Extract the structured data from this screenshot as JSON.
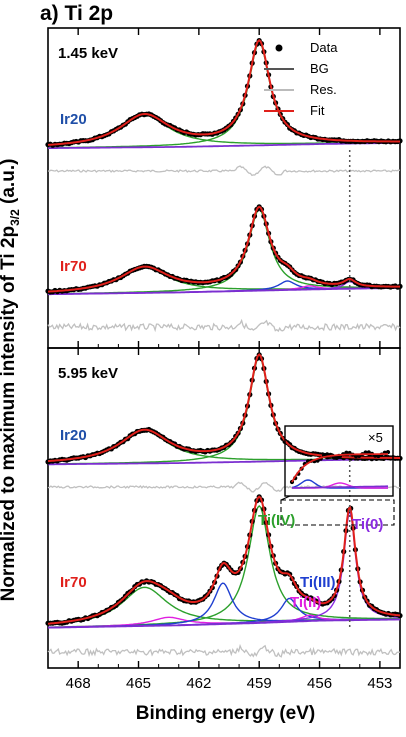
{
  "title": "a) Ti 2p",
  "chart_data": {
    "type": "line",
    "x_reversed": true,
    "xlim": [
      469.5,
      452
    ],
    "xlabel": "Binding energy (eV)",
    "ylabel_parts": [
      "Normalized to maximum intensity of Ti 2p",
      "3/2",
      " (a.u.)"
    ],
    "x_ticks": [
      {
        "value": 468,
        "label": "468"
      },
      {
        "value": 465,
        "label": "465"
      },
      {
        "value": 462,
        "label": "462"
      },
      {
        "value": 459,
        "label": "459"
      },
      {
        "value": 456,
        "label": "456"
      },
      {
        "value": 453,
        "label": "453"
      }
    ],
    "legend": [
      {
        "label": "Data",
        "kind": "marker",
        "color": "#000000"
      },
      {
        "label": "BG",
        "kind": "line",
        "color": "#555555"
      },
      {
        "label": "Res.",
        "kind": "line",
        "color": "#bbbbbb"
      },
      {
        "label": "Fit",
        "kind": "line",
        "color": "#e0201b"
      }
    ],
    "colors": {
      "data": "#000000",
      "fit": "#e0201b",
      "bg": "#7b2fd0",
      "res": "#c0c0c0",
      "ti4": "#2ca02c",
      "ti3": "#1f3fd0",
      "ti2": "#e020e0",
      "ti0": "#8a2be2",
      "ir20": "#1f4fa8",
      "ir70": "#e0201b"
    },
    "panels": [
      {
        "energy": "1.45 keV",
        "traces": [
          {
            "sample": "Ir20",
            "residual": "flat",
            "bg": [
              [
                469.5,
                0.018
              ],
              [
                463,
                0.03
              ],
              [
                459,
                0.045
              ],
              [
                456,
                0.058
              ],
              [
                452,
                0.07
              ]
            ],
            "components": [
              {
                "state": "Ti(IV)",
                "center": 464.7,
                "height": 0.31,
                "width": 1.5
              },
              {
                "state": "Ti(IV)",
                "center": 459.0,
                "height": 1.0,
                "width": 0.65
              }
            ]
          },
          {
            "sample": "Ir70",
            "residual": "noisy",
            "bg": [
              [
                469.5,
                0.02
              ],
              [
                463,
                0.04
              ],
              [
                459,
                0.06
              ],
              [
                456,
                0.075
              ],
              [
                452,
                0.09
              ]
            ],
            "components": [
              {
                "state": "Ti(IV)",
                "center": 464.7,
                "height": 0.28,
                "width": 1.5
              },
              {
                "state": "Ti(IV)",
                "center": 459.0,
                "height": 0.9,
                "width": 0.65
              },
              {
                "state": "Ti(III)",
                "center": 457.6,
                "height": 0.1,
                "width": 0.5
              },
              {
                "state": "Ti(II)",
                "center": 456.5,
                "height": 0.04,
                "width": 0.5
              },
              {
                "state": "Ti(0)",
                "center": 454.5,
                "height": 0.08,
                "width": 0.35
              }
            ]
          }
        ]
      },
      {
        "energy": "5.95 keV",
        "traces": [
          {
            "sample": "Ir20",
            "residual": "flat",
            "bg": [
              [
                469.5,
                0.016
              ],
              [
                463,
                0.028
              ],
              [
                459,
                0.042
              ],
              [
                456,
                0.055
              ],
              [
                452,
                0.065
              ]
            ],
            "components": [
              {
                "state": "Ti(IV)",
                "center": 464.7,
                "height": 0.31,
                "width": 1.5
              },
              {
                "state": "Ti(IV)",
                "center": 459.0,
                "height": 1.0,
                "width": 0.6
              }
            ]
          },
          {
            "sample": "Ir70",
            "residual": "noisy",
            "bg": [
              [
                469.5,
                0.02
              ],
              [
                463,
                0.04
              ],
              [
                459,
                0.06
              ],
              [
                456,
                0.08
              ],
              [
                452,
                0.09
              ]
            ],
            "components": [
              {
                "state": "Ti(IV)",
                "center": 464.7,
                "height": 0.33,
                "width": 1.4
              },
              {
                "state": "Ti(IV)",
                "center": 459.0,
                "height": 1.0,
                "width": 0.65
              },
              {
                "state": "Ti(II)",
                "center": 463.5,
                "height": 0.07,
                "width": 1.0
              },
              {
                "state": "Ti(III)",
                "center": 460.8,
                "height": 0.35,
                "width": 0.55
              },
              {
                "state": "Ti(III)",
                "center": 457.5,
                "height": 0.2,
                "width": 0.5
              },
              {
                "state": "Ti(II)",
                "center": 456.5,
                "height": 0.05,
                "width": 0.5
              },
              {
                "state": "Ti(0)",
                "center": 454.5,
                "height": 0.93,
                "width": 0.35
              }
            ]
          }
        ]
      }
    ],
    "component_labels": [
      "Ti(IV)",
      "Ti(III)",
      "Ti(II)",
      "Ti(0)"
    ],
    "dotted_line_energy": 454.5,
    "inset": {
      "label": "×5"
    }
  }
}
